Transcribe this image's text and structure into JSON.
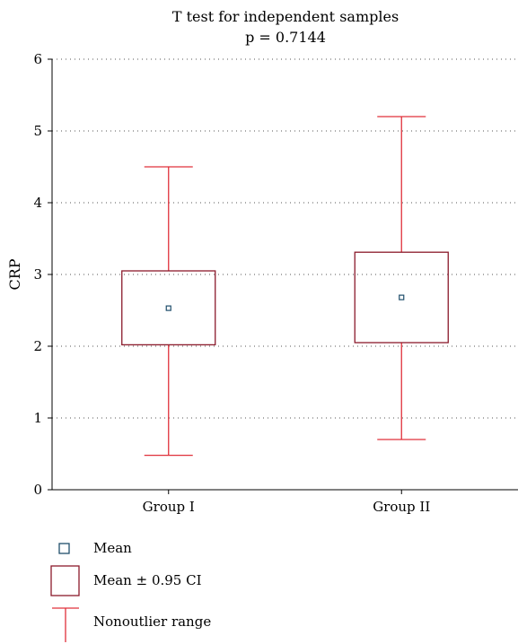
{
  "chart_data": {
    "type": "box",
    "title": "T test for independent samples",
    "subtitle": "p = 0.7144",
    "xlabel": "",
    "ylabel": "CRP",
    "ylim": [
      0,
      6
    ],
    "yticks": [
      "0",
      "1",
      "2",
      "3",
      "4",
      "5",
      "6"
    ],
    "grid": "horizontal dotted",
    "categories": [
      "Group I",
      "Group II"
    ],
    "boxes": [
      {
        "category": "Group I",
        "mean": 2.53,
        "ci_low": 2.02,
        "ci_high": 3.05,
        "min": 0.48,
        "max": 4.5
      },
      {
        "category": "Group II",
        "mean": 2.68,
        "ci_low": 2.05,
        "ci_high": 3.31,
        "min": 0.7,
        "max": 5.2
      }
    ],
    "colors": {
      "box": "#8b1a2b",
      "whisker": "#e0303a",
      "mean_marker": "#1f4e6b",
      "grid": "#555555"
    }
  },
  "legend": {
    "mean_label": "Mean",
    "ci_label": "Mean ± 0.95 CI",
    "range_label": "Nonoutlier range"
  }
}
